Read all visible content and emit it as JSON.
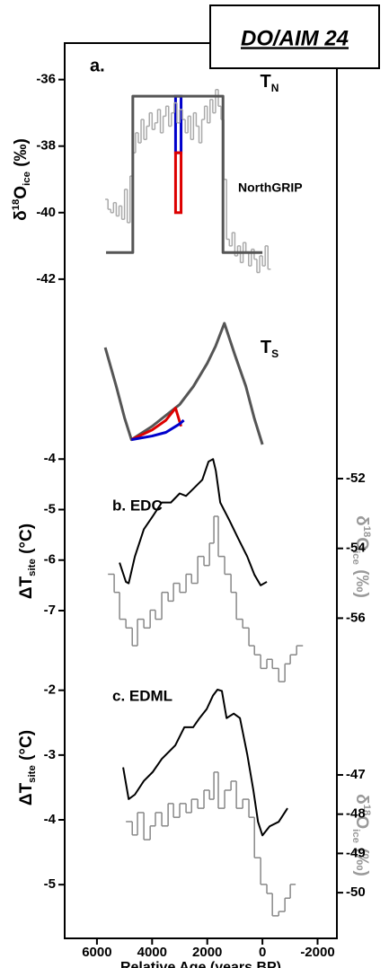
{
  "chart_data": [
    {
      "type": "line",
      "title": "DO/AIM 24",
      "panel_label": "a.",
      "ylabel": [
        {
          "text": "δ"
        },
        {
          "text": "18",
          "shift": "sup"
        },
        {
          "text": "O"
        },
        {
          "text": "ice",
          "shift": "sub"
        },
        {
          "text": " (‰)"
        }
      ],
      "ylim": [
        -42.3,
        -35.2
      ],
      "yticks": [
        -36,
        -38,
        -40,
        -42
      ],
      "curve_label": [
        {
          "text": "T"
        },
        {
          "text": "N",
          "shift": "sub"
        }
      ],
      "series": [
        {
          "name": "NorthGRIP",
          "color": "#aaaaaa",
          "step": true,
          "x": [
            5700,
            5600,
            5500,
            5400,
            5300,
            5200,
            5100,
            5000,
            4900,
            4800,
            4700,
            4600,
            4500,
            4400,
            4300,
            4200,
            4100,
            4000,
            3900,
            3800,
            3700,
            3600,
            3500,
            3400,
            3300,
            3200,
            3100,
            3000,
            2900,
            2800,
            2700,
            2600,
            2500,
            2400,
            2300,
            2200,
            2100,
            2000,
            1900,
            1800,
            1700,
            1600,
            1500,
            1400,
            1300,
            1200,
            1100,
            1000,
            900,
            800,
            700,
            600,
            500,
            400,
            300,
            200,
            100,
            0,
            -100,
            -200
          ],
          "values": [
            -39.6,
            -39.9,
            -40.0,
            -39.7,
            -40.1,
            -39.8,
            -40.2,
            -39.3,
            -40.3,
            -38.9,
            -38.2,
            -37.6,
            -37.9,
            -37.2,
            -37.8,
            -37.4,
            -37.0,
            -37.5,
            -37.3,
            -36.9,
            -37.6,
            -37.1,
            -36.8,
            -37.4,
            -37.0,
            -36.7,
            -37.3,
            -36.9,
            -37.2,
            -37.6,
            -37.1,
            -37.8,
            -37.0,
            -37.4,
            -37.9,
            -37.2,
            -36.8,
            -37.3,
            -36.6,
            -37.0,
            -36.3,
            -36.8,
            -37.2,
            -39.0,
            -40.8,
            -41.0,
            -40.6,
            -41.3,
            -41.0,
            -41.5,
            -40.9,
            -41.2,
            -41.6,
            -41.1,
            -41.4,
            -41.8,
            -41.3,
            -41.6,
            -41.0,
            -41.7
          ]
        },
        {
          "color": "#555555",
          "width": 3,
          "x": [
            5670,
            4700,
            4700,
            1430,
            1430,
            0
          ],
          "values": [
            -41.2,
            -41.2,
            -36.5,
            -36.5,
            -41.2,
            -41.2
          ]
        }
      ],
      "bands": [
        {
          "color": "#0000cc",
          "x": [
            3150,
            2950
          ],
          "values": [
            -36.5,
            -38.2
          ]
        },
        {
          "color": "#dd0000",
          "x": [
            3150,
            2950
          ],
          "values": [
            -38.2,
            -40.0
          ]
        }
      ]
    },
    {
      "type": "line",
      "curve_label": [
        {
          "text": "T"
        },
        {
          "text": "S",
          "shift": "sub"
        }
      ],
      "series": [
        {
          "color": "#555555",
          "width": 3,
          "x": [
            5700,
            5300,
            5000,
            4750,
            4000,
            3000,
            2500,
            2000,
            1700,
            1380,
            1000,
            600,
            300,
            0
          ],
          "values": [
            0.8,
            0.48,
            0.22,
            0.04,
            0.15,
            0.33,
            0.48,
            0.67,
            0.81,
            1,
            0.74,
            0.48,
            0.22,
            0
          ]
        },
        {
          "color": "#dd0000",
          "width": 3,
          "x": [
            4750,
            4000,
            3500,
            3150,
            2950
          ],
          "values": [
            0.04,
            0.12,
            0.2,
            0.3,
            0.15
          ]
        },
        {
          "color": "#0000cc",
          "width": 3,
          "x": [
            4750,
            4000,
            3500,
            3000,
            2850
          ],
          "values": [
            0.04,
            0.07,
            0.1,
            0.17,
            0.2
          ]
        }
      ]
    },
    {
      "type": "line",
      "panel_label": "b. EDC",
      "ylabel": [
        {
          "text": "ΔT"
        },
        {
          "text": "site",
          "shift": "sub"
        },
        {
          "text": " (°C)"
        }
      ],
      "ylim": [
        -8.6,
        -3.8
      ],
      "yticks": [
        -4,
        -5,
        -6,
        -7
      ],
      "y2label": [
        {
          "text": "δ"
        },
        {
          "text": "18",
          "shift": "sup"
        },
        {
          "text": "O"
        },
        {
          "text": "ice",
          "shift": "sub"
        },
        {
          "text": " (‰)"
        }
      ],
      "y2lim": [
        -58.1,
        -51.15
      ],
      "y2ticks": [
        -52,
        -54,
        -56
      ],
      "y2tick_color": "#999999",
      "y2label_color": "#999999",
      "series": [
        {
          "color": "#000000",
          "width": 2,
          "x": [
            5180,
            4950,
            4850,
            4625,
            4300,
            3975,
            3650,
            3320,
            3000,
            2770,
            2510,
            2180,
            1955,
            1790,
            1690,
            1530,
            1200,
            880,
            550,
            290,
            65,
            -160
          ],
          "values": [
            -6.05,
            -6.43,
            -6.46,
            -5.93,
            -5.39,
            -5.13,
            -4.86,
            -4.86,
            -4.68,
            -4.73,
            -4.59,
            -4.41,
            -4.05,
            -4.0,
            -4.23,
            -4.86,
            -5.21,
            -5.57,
            -5.93,
            -6.29,
            -6.5,
            -6.43
          ]
        },
        {
          "color": "#888888",
          "step": true,
          "axis": "y2",
          "x": [
            5600,
            5375,
            5180,
            4950,
            4720,
            4530,
            4300,
            4070,
            3880,
            3650,
            3420,
            3225,
            3000,
            2770,
            2570,
            2345,
            2120,
            1920,
            1760,
            1600,
            1370,
            1140,
            945,
            715,
            490,
            290,
            65,
            -160,
            -360,
            -590,
            -815,
            -1010,
            -1240
          ],
          "values": [
            -54.74,
            -55.26,
            -56.03,
            -56.28,
            -56.79,
            -56.03,
            -56.28,
            -55.77,
            -56.03,
            -55.26,
            -55.51,
            -55.0,
            -55.26,
            -54.74,
            -55.0,
            -54.23,
            -54.49,
            -53.85,
            -53.08,
            -54.23,
            -54.74,
            -55.26,
            -56.03,
            -56.28,
            -56.79,
            -57.05,
            -57.44,
            -57.18,
            -57.44,
            -57.82,
            -57.31,
            -57.05,
            -56.79
          ]
        }
      ]
    },
    {
      "type": "line",
      "panel_label": "c. EDML",
      "ylabel": [
        {
          "text": "ΔT"
        },
        {
          "text": "site",
          "shift": "sub"
        },
        {
          "text": " (°C)"
        }
      ],
      "ylim": [
        -5.76,
        -1.81
      ],
      "yticks": [
        -2,
        -3,
        -4,
        -5
      ],
      "y2label": [
        {
          "text": "δ"
        },
        {
          "text": "18",
          "shift": "sup"
        },
        {
          "text": "O"
        },
        {
          "text": "ice",
          "shift": "sub"
        },
        {
          "text": " (‰)"
        }
      ],
      "y2lim": [
        -51.05,
        -44.53
      ],
      "y2ticks": [
        -47,
        -48,
        -49,
        -50
      ],
      "y2tick_color": "#000000",
      "y2label_color": "#999999",
      "xlim": [
        7170,
        -2700
      ],
      "xticks": [
        6000,
        4000,
        2000,
        0,
        -2000
      ],
      "xlabel": "Relative Age (years BP)",
      "series": [
        {
          "color": "#000000",
          "width": 2,
          "x": [
            5050,
            4850,
            4625,
            4300,
            3975,
            3650,
            3160,
            2830,
            2510,
            2280,
            2020,
            1790,
            1630,
            1470,
            1300,
            1040,
            815,
            550,
            330,
            160,
            0,
            -260,
            -590,
            -910
          ],
          "values": [
            -3.19,
            -3.68,
            -3.61,
            -3.4,
            -3.26,
            -3.06,
            -2.85,
            -2.57,
            -2.57,
            -2.43,
            -2.29,
            -2.08,
            -1.99,
            -2.01,
            -2.43,
            -2.36,
            -2.43,
            -2.99,
            -3.54,
            -4.03,
            -4.24,
            -4.1,
            -4.03,
            -3.82
          ]
        },
        {
          "color": "#888888",
          "step": true,
          "axis": "y2",
          "x": [
            4950,
            4720,
            4530,
            4300,
            4070,
            3880,
            3650,
            3420,
            3225,
            3000,
            2770,
            2570,
            2345,
            2120,
            1920,
            1760,
            1600,
            1370,
            1140,
            945,
            715,
            490,
            290,
            65,
            -160,
            -360,
            -590,
            -815,
            -1010
          ],
          "values": [
            -48.19,
            -48.53,
            -47.96,
            -48.65,
            -48.3,
            -47.96,
            -48.3,
            -47.73,
            -48.08,
            -47.73,
            -47.96,
            -47.62,
            -47.85,
            -47.39,
            -47.62,
            -46.93,
            -47.85,
            -47.39,
            -47.16,
            -47.85,
            -47.62,
            -48.08,
            -49.11,
            -49.79,
            -50.02,
            -50.59,
            -50.48,
            -50.14,
            -49.79
          ]
        }
      ]
    }
  ]
}
